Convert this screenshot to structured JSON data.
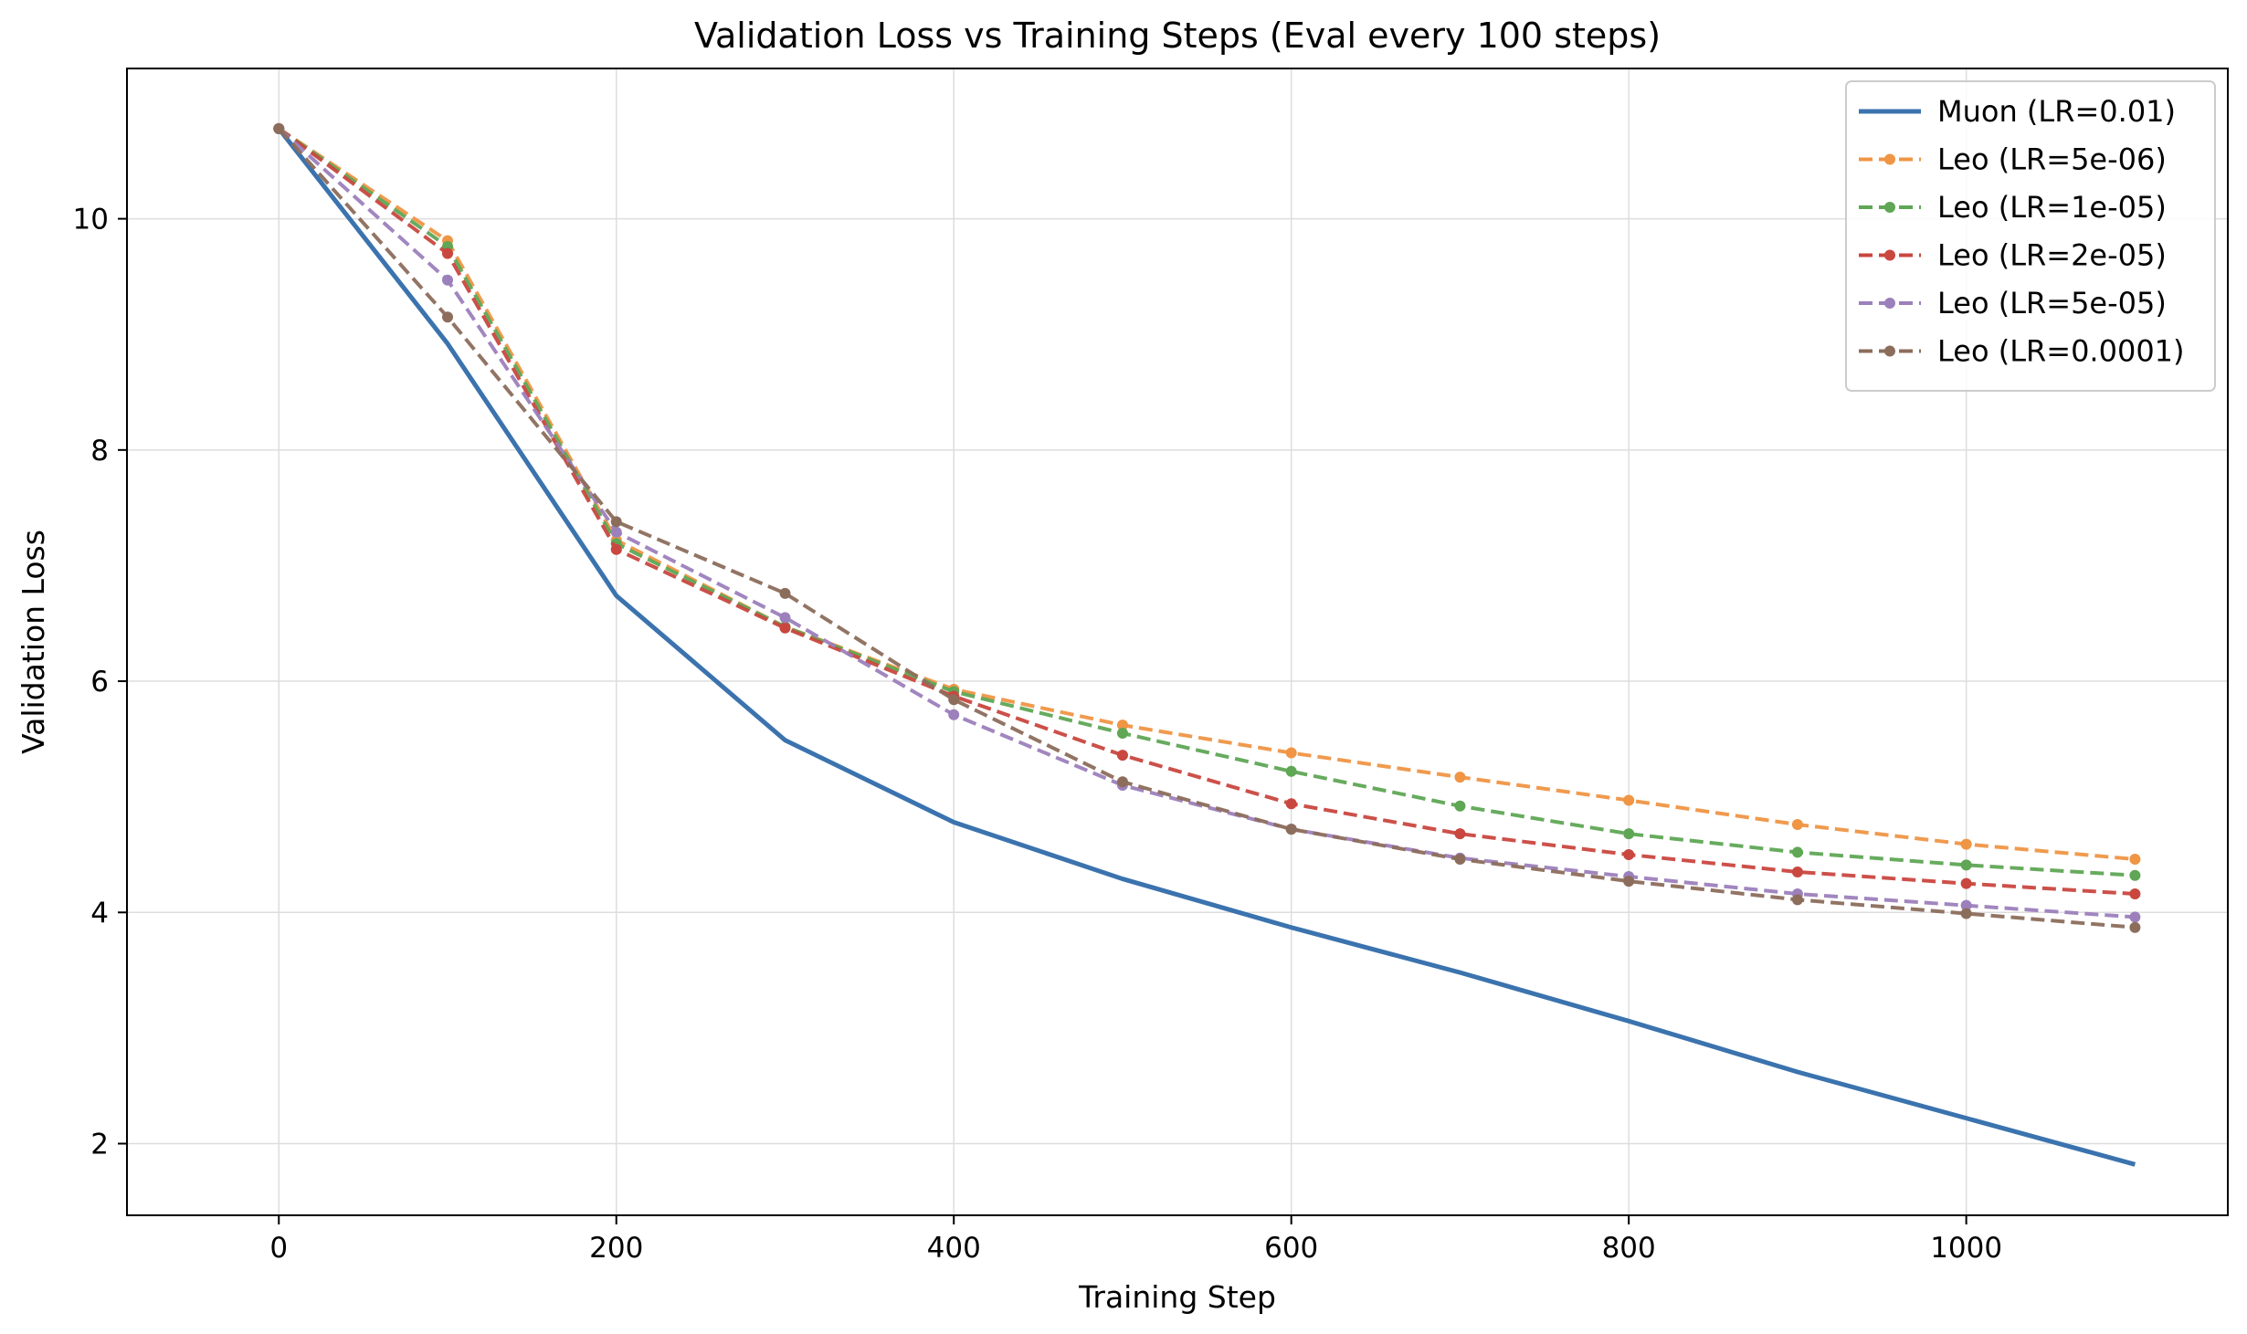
{
  "chart_data": {
    "type": "line",
    "title": "Validation Loss vs Training Steps (Eval every 100 steps)",
    "xlabel": "Training Step",
    "ylabel": "Validation Loss",
    "xlim": [
      -90,
      1155
    ],
    "ylim": [
      1.38,
      11.3
    ],
    "xticks": [
      0,
      200,
      400,
      600,
      800,
      1000
    ],
    "yticks": [
      2,
      4,
      6,
      8,
      10
    ],
    "grid": true,
    "legend_position": "top-right",
    "x": [
      0,
      100,
      200,
      300,
      400,
      500,
      600,
      700,
      800,
      900,
      1000,
      1100
    ],
    "series": [
      {
        "name": "Muon (LR=0.01)",
        "color": "#3b73ae",
        "style": "solid",
        "markers": false,
        "values": [
          10.78,
          8.92,
          6.74,
          5.49,
          4.78,
          4.29,
          3.87,
          3.48,
          3.06,
          2.62,
          2.22,
          1.82
        ]
      },
      {
        "name": "Leo (LR=5e-06)",
        "color": "#ef9544",
        "style": "dashed",
        "markers": true,
        "values": [
          10.78,
          9.81,
          7.22,
          6.47,
          5.93,
          5.62,
          5.38,
          5.17,
          4.97,
          4.76,
          4.59,
          4.46
        ]
      },
      {
        "name": "Leo (LR=1e-05)",
        "color": "#5fa655",
        "style": "dashed",
        "markers": true,
        "values": [
          10.78,
          9.76,
          7.19,
          6.47,
          5.91,
          5.55,
          5.22,
          4.92,
          4.68,
          4.52,
          4.41,
          4.32
        ]
      },
      {
        "name": "Leo (LR=2e-05)",
        "color": "#c9473f",
        "style": "dashed",
        "markers": true,
        "values": [
          10.78,
          9.7,
          7.14,
          6.46,
          5.87,
          5.36,
          4.94,
          4.68,
          4.5,
          4.35,
          4.25,
          4.16
        ]
      },
      {
        "name": "Leo (LR=5e-05)",
        "color": "#9c80bc",
        "style": "dashed",
        "markers": true,
        "values": [
          10.78,
          9.47,
          7.29,
          6.55,
          5.71,
          5.1,
          4.72,
          4.47,
          4.31,
          4.16,
          4.06,
          3.96
        ]
      },
      {
        "name": "Leo (LR=0.0001)",
        "color": "#8c6d5c",
        "style": "dashed",
        "markers": true,
        "values": [
          10.78,
          9.15,
          7.38,
          6.76,
          5.84,
          5.13,
          4.72,
          4.46,
          4.27,
          4.11,
          3.99,
          3.87
        ]
      }
    ]
  }
}
